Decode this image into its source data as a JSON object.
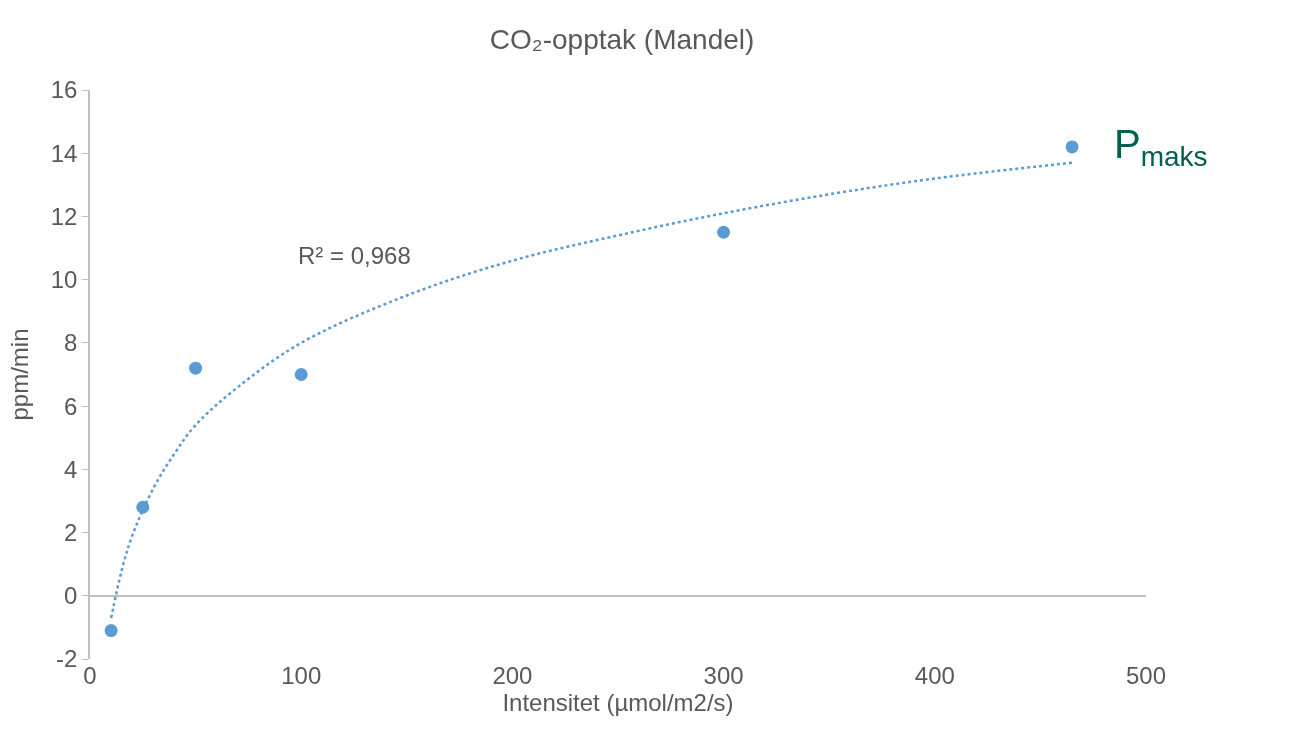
{
  "chart_data": {
    "type": "scatter",
    "title": "CO₂-opptak (Mandel)",
    "xlabel": "Intensitet (µmol/m2/s)",
    "ylabel": "ppm/min",
    "xlim": [
      0,
      500
    ],
    "xticks": [
      0,
      100,
      200,
      300,
      400,
      500
    ],
    "ylim": [
      -2,
      16
    ],
    "yticks": [
      -2,
      0,
      2,
      4,
      6,
      8,
      10,
      12,
      14,
      16
    ],
    "marker": "circle",
    "series": [
      {
        "color": "#5b9bd5",
        "x": [
          10,
          25,
          50,
          100,
          300,
          465
        ],
        "values": [
          -1.1,
          2.8,
          7.2,
          7.0,
          11.5,
          14.2
        ]
      },
      {
        "type": "line",
        "line_style": "dotted",
        "marker": "none",
        "color": "#5b9bd5",
        "x": [
          10,
          15,
          20,
          30,
          40,
          50,
          70,
          100,
          150,
          200,
          250,
          300,
          350,
          400,
          465
        ],
        "values": [
          -0.7,
          0.8,
          1.9,
          3.4,
          4.5,
          5.4,
          6.6,
          8.0,
          9.5,
          10.6,
          11.4,
          12.1,
          12.7,
          13.2,
          13.7
        ]
      }
    ],
    "annotations": [
      "R² = 0,968",
      {
        "text": "P$_{maks}$",
        "x": 465,
        "y": 14.2
      }
    ]
  }
}
